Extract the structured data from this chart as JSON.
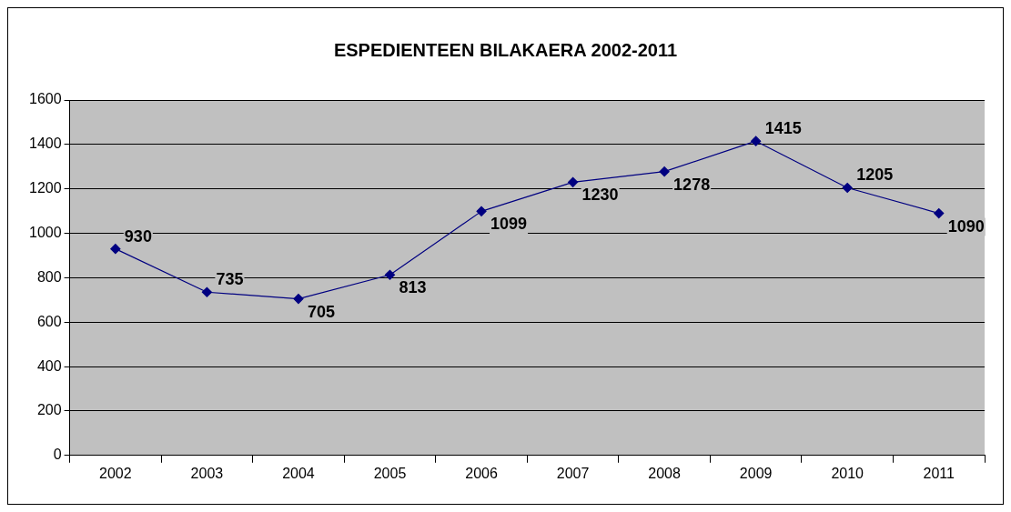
{
  "chart_data": {
    "type": "line",
    "title": "ESPEDIENTEEN BILAKAERA 2002-2011",
    "categories": [
      "2002",
      "2003",
      "2004",
      "2005",
      "2006",
      "2007",
      "2008",
      "2009",
      "2010",
      "2011"
    ],
    "series": [
      {
        "color": "#000080",
        "values": [
          930,
          735,
          705,
          813,
          1099,
          1230,
          1278,
          1415,
          1205,
          1090
        ]
      }
    ],
    "ylim": [
      0,
      1600
    ],
    "yticks": [
      0,
      200,
      400,
      600,
      800,
      1000,
      1200,
      1400,
      1600
    ],
    "grid": "y",
    "legend": false,
    "marker": "diamond",
    "line_style": "solid",
    "data_labels": true
  }
}
